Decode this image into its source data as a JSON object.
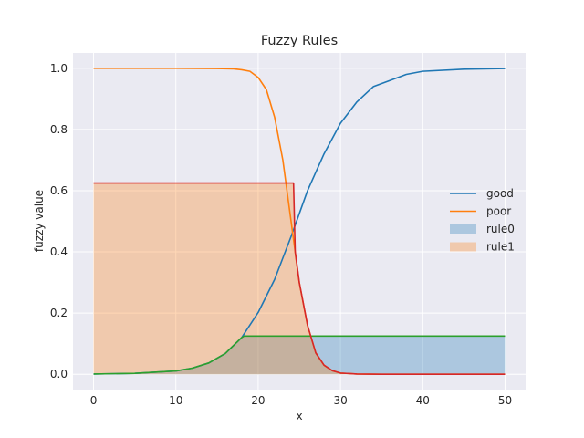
{
  "chart_data": {
    "type": "line",
    "title": "Fuzzy Rules",
    "xlabel": "x",
    "ylabel": "fuzzy value",
    "xlim": [
      -2.5,
      52.5
    ],
    "ylim": [
      -0.05,
      1.05
    ],
    "xticks": [
      0,
      10,
      20,
      30,
      40,
      50
    ],
    "yticks": [
      0.0,
      0.2,
      0.4,
      0.6,
      0.8,
      1.0
    ],
    "grid": true,
    "legend_position": "center-right",
    "series": [
      {
        "name": "good",
        "kind": "line",
        "color": "#1f77b4",
        "points": [
          [
            0,
            0.001
          ],
          [
            5,
            0.003
          ],
          [
            10,
            0.011
          ],
          [
            12,
            0.02
          ],
          [
            14,
            0.037
          ],
          [
            16,
            0.068
          ],
          [
            18,
            0.12
          ],
          [
            20,
            0.202
          ],
          [
            22,
            0.31
          ],
          [
            24,
            0.45
          ],
          [
            26,
            0.6
          ],
          [
            28,
            0.72
          ],
          [
            30,
            0.82
          ],
          [
            32,
            0.89
          ],
          [
            34,
            0.94
          ],
          [
            36,
            0.96
          ],
          [
            38,
            0.98
          ],
          [
            40,
            0.99
          ],
          [
            45,
            0.997
          ],
          [
            50,
            0.999
          ]
        ]
      },
      {
        "name": "poor",
        "kind": "line",
        "color": "#ff7f0e",
        "points": [
          [
            0,
            1.0
          ],
          [
            10,
            1.0
          ],
          [
            15,
            0.999
          ],
          [
            17,
            0.998
          ],
          [
            18,
            0.995
          ],
          [
            19,
            0.99
          ],
          [
            20,
            0.97
          ],
          [
            21,
            0.93
          ],
          [
            22,
            0.84
          ],
          [
            23,
            0.7
          ],
          [
            24,
            0.5
          ],
          [
            24.5,
            0.4
          ],
          [
            25,
            0.3
          ],
          [
            26,
            0.16
          ],
          [
            27,
            0.07
          ],
          [
            28,
            0.03
          ],
          [
            29,
            0.012
          ],
          [
            30,
            0.004
          ],
          [
            32,
            0.001
          ],
          [
            35,
            0.0
          ],
          [
            50,
            0.0
          ]
        ]
      },
      {
        "name": "rule0",
        "kind": "area",
        "color": "#1f77b4",
        "opacity": 0.3,
        "points": [
          [
            0,
            0.001
          ],
          [
            5,
            0.003
          ],
          [
            10,
            0.011
          ],
          [
            12,
            0.02
          ],
          [
            14,
            0.037
          ],
          [
            16,
            0.068
          ],
          [
            18,
            0.12
          ],
          [
            18.3,
            0.125
          ],
          [
            50,
            0.125
          ]
        ]
      },
      {
        "name": "rule1",
        "kind": "area",
        "color": "#ff7f0e",
        "opacity": 0.3,
        "points": [
          [
            0,
            0.625
          ],
          [
            24.3,
            0.625
          ],
          [
            24.5,
            0.4
          ],
          [
            25,
            0.3
          ],
          [
            26,
            0.16
          ],
          [
            27,
            0.07
          ],
          [
            28,
            0.03
          ],
          [
            29,
            0.012
          ],
          [
            30,
            0.004
          ],
          [
            32,
            0.001
          ],
          [
            35,
            0.0
          ],
          [
            50,
            0.0
          ]
        ]
      },
      {
        "kind": "line",
        "color": "#2ca02c",
        "points": [
          [
            0,
            0.001
          ],
          [
            5,
            0.003
          ],
          [
            10,
            0.011
          ],
          [
            12,
            0.02
          ],
          [
            14,
            0.037
          ],
          [
            16,
            0.068
          ],
          [
            18,
            0.12
          ],
          [
            18.3,
            0.125
          ],
          [
            50,
            0.125
          ]
        ]
      },
      {
        "kind": "line",
        "color": "#d62728",
        "points": [
          [
            0,
            0.625
          ],
          [
            24.3,
            0.625
          ],
          [
            24.5,
            0.4
          ],
          [
            25,
            0.3
          ],
          [
            26,
            0.16
          ],
          [
            27,
            0.07
          ],
          [
            28,
            0.03
          ],
          [
            29,
            0.012
          ],
          [
            30,
            0.004
          ],
          [
            32,
            0.001
          ],
          [
            35,
            0.0
          ],
          [
            50,
            0.0
          ]
        ]
      }
    ],
    "legend": [
      {
        "label": "good",
        "kind": "line",
        "color": "#1f77b4"
      },
      {
        "label": "poor",
        "kind": "line",
        "color": "#ff7f0e"
      },
      {
        "label": "rule0",
        "kind": "patch",
        "color": "#1f77b4",
        "opacity": 0.3
      },
      {
        "label": "rule1",
        "kind": "patch",
        "color": "#ff7f0e",
        "opacity": 0.3
      }
    ]
  }
}
